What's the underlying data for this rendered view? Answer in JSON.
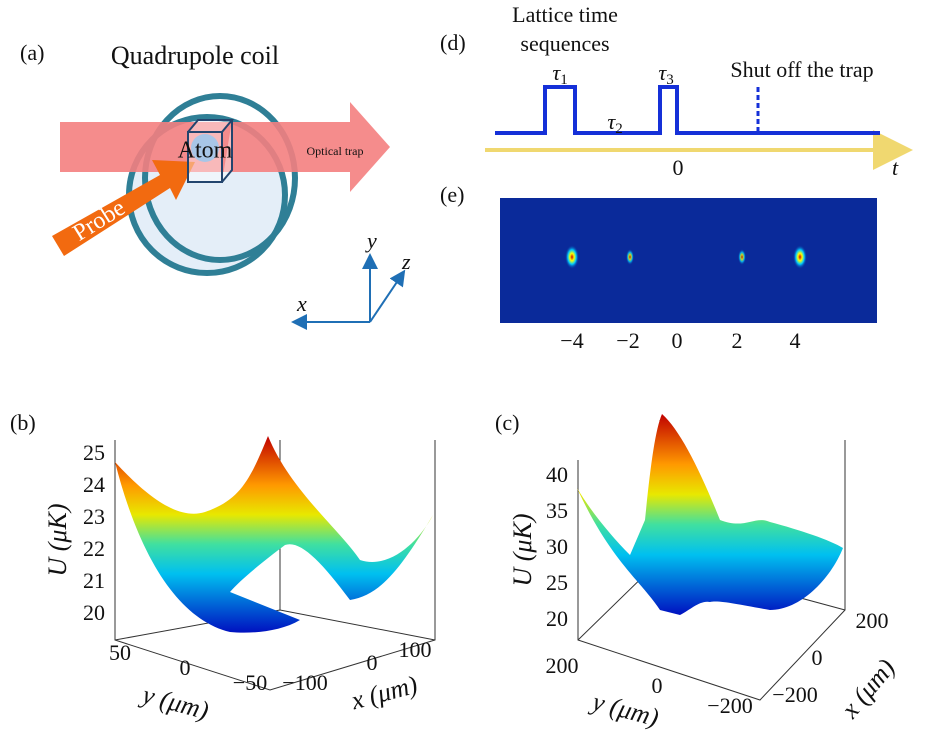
{
  "panels": {
    "a": {
      "label": "(a)",
      "title": "Quadrupole coil",
      "atom": "Atom",
      "probe": "Probe",
      "optical_trap": "Optical trap",
      "axes": {
        "x": "x",
        "y": "y",
        "z": "z"
      }
    },
    "d": {
      "label": "(d)",
      "title": [
        "Lattice time",
        "sequences"
      ],
      "tau1": {
        "symbol": "τ",
        "sub": "1"
      },
      "tau2": {
        "symbol": "τ",
        "sub": "2"
      },
      "tau3": {
        "symbol": "τ",
        "sub": "3"
      },
      "shutoff": "Shut off the trap",
      "zero": "0",
      "axis": "t"
    },
    "e": {
      "label": "(e)",
      "ticks": [
        "−4",
        "−2",
        "0",
        "2",
        "4"
      ]
    },
    "b": {
      "label": "(b)",
      "z_label": "U (μK)",
      "y_label": "y (μm)",
      "x_label": "x (μm)",
      "z_ticks": [
        "25",
        "24",
        "23",
        "22",
        "21",
        "20"
      ],
      "y_ticks": [
        "50",
        "0",
        "−50"
      ],
      "x_ticks": [
        "−100",
        "0",
        "100"
      ]
    },
    "c": {
      "label": "(c)",
      "z_label": "U (μK)",
      "y_label": "y (μm)",
      "x_label": "x (μm)",
      "z_ticks": [
        "40",
        "35",
        "30",
        "25",
        "20"
      ],
      "y_ticks": [
        "200",
        "0",
        "−200"
      ],
      "x_ticks": [
        "200",
        "0",
        "−200"
      ]
    }
  }
}
